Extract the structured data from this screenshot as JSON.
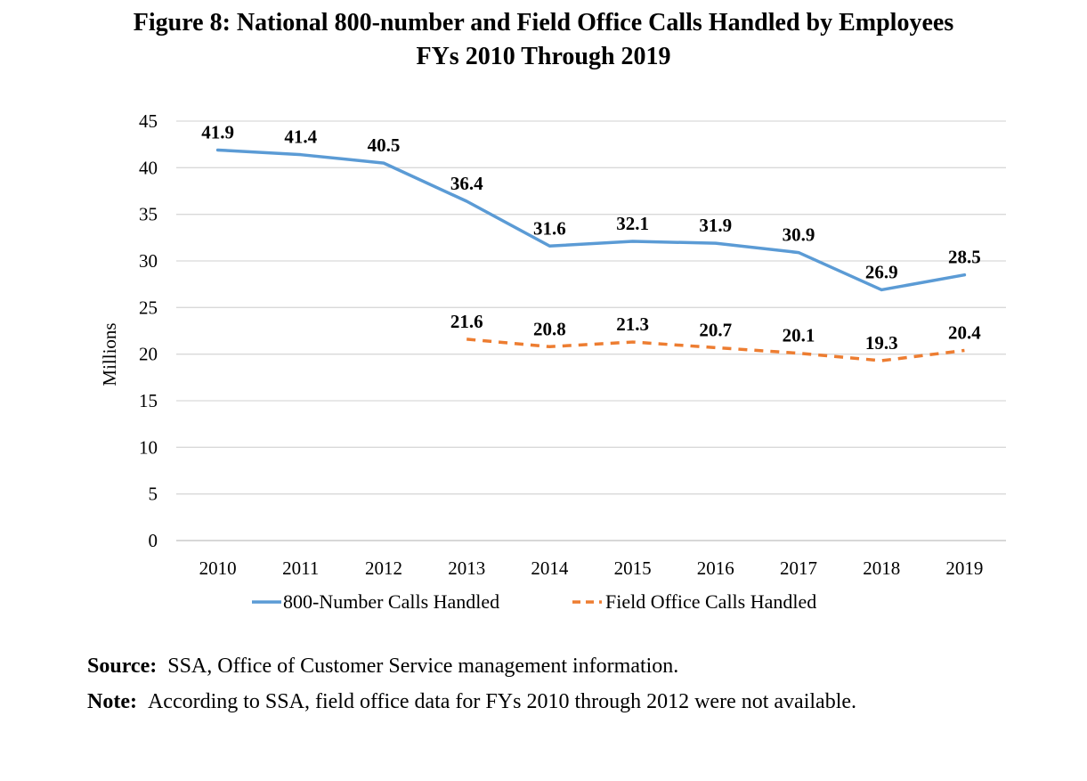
{
  "chart_data": {
    "type": "line",
    "title": "Figure 8: National 800-number and Field Office Calls Handled by Employees",
    "subtitle": "FYs 2010 Through 2019",
    "xlabel": "",
    "ylabel": "Millions",
    "ylim": [
      0,
      45
    ],
    "yticks": [
      "0",
      "5",
      "10",
      "15",
      "20",
      "25",
      "30",
      "35",
      "40",
      "45"
    ],
    "categories": [
      "2010",
      "2011",
      "2012",
      "2013",
      "2014",
      "2015",
      "2016",
      "2017",
      "2018",
      "2019"
    ],
    "grid": true,
    "legend_position": "bottom",
    "series": [
      {
        "name": "800-Number Calls Handled",
        "color": "#5b9bd5",
        "style": "solid",
        "values": [
          41.9,
          41.4,
          40.5,
          36.4,
          31.6,
          32.1,
          31.9,
          30.9,
          26.9,
          28.5
        ],
        "labels": [
          "41.9",
          "41.4",
          "40.5",
          "36.4",
          "31.6",
          "32.1",
          "31.9",
          "30.9",
          "26.9",
          "28.5"
        ]
      },
      {
        "name": "Field Office Calls Handled",
        "color": "#ed7d31",
        "style": "dashed",
        "values": [
          null,
          null,
          null,
          21.6,
          20.8,
          21.3,
          20.7,
          20.1,
          19.3,
          20.4
        ],
        "labels": [
          null,
          null,
          null,
          "21.6",
          "20.8",
          "21.3",
          "20.7",
          "20.1",
          "19.3",
          "20.4"
        ]
      }
    ]
  },
  "footer": {
    "source_label": "Source:",
    "source_text": "SSA, Office of Customer Service management information.",
    "note_label": "Note:",
    "note_text": "According to SSA, field office data for FYs 2010 through 2012 were not available."
  },
  "colors": {
    "gridline": "#d9d9d9",
    "axis": "#bfbfbf"
  }
}
